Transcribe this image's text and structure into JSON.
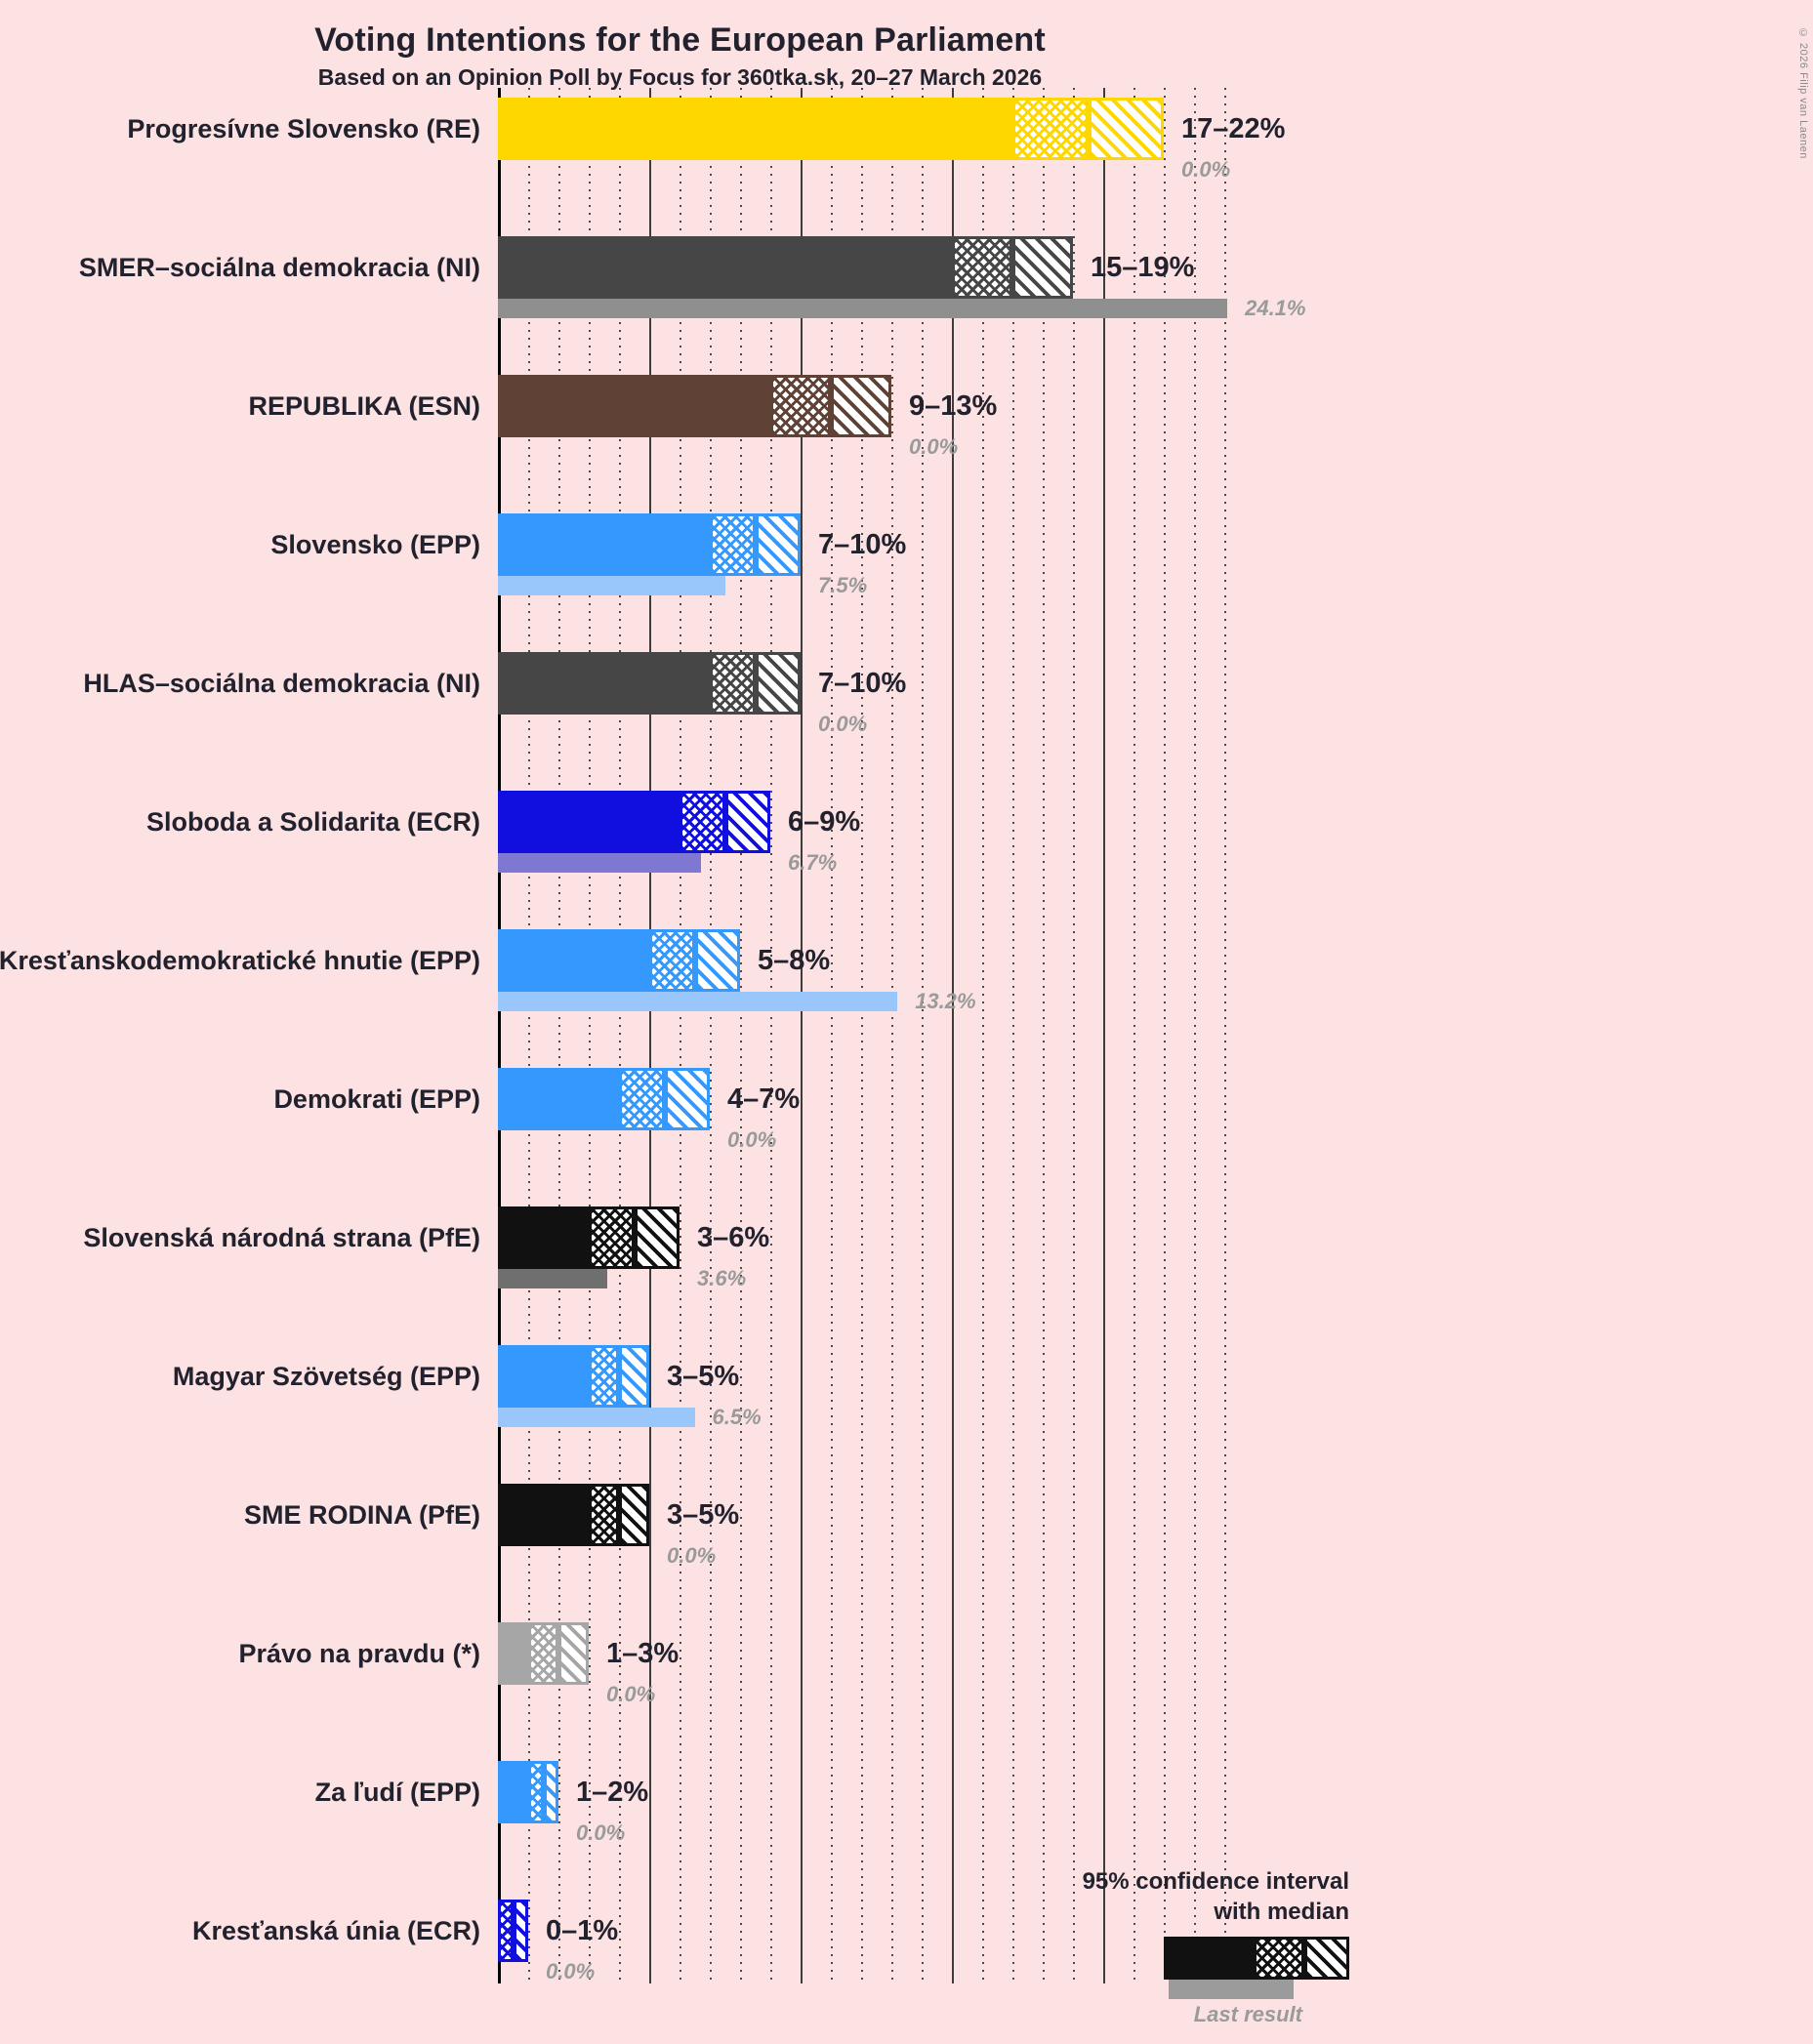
{
  "title": "Voting Intentions for the European Parliament",
  "subtitle": "Based on an Opinion Poll by Focus for 360tka.sk, 20–27 March 2026",
  "copyright": "© 2026 Filip van Laenen",
  "legend": {
    "ci_line1": "95% confidence interval",
    "ci_line2": "with median",
    "last_result": "Last result",
    "sample_color": "#111111",
    "sample_last_color": "#9b9b9b"
  },
  "chart_data": {
    "type": "bar",
    "orientation": "horizontal",
    "x_axis": {
      "min": 0,
      "max": 25,
      "unit": "%",
      "dotted_gridline_step": 1,
      "solid_gridline_step": 5,
      "tick_labels_visible": false
    },
    "legend_position": "bottom-right",
    "background_color": "#fce2e2",
    "parties": [
      {
        "label": "Progresívne Slovensko (RE)",
        "ci_low": 17,
        "median": 19.5,
        "ci_high": 22,
        "last_result": 0.0,
        "range_label": "17–22%",
        "last_result_label": "0.0%",
        "color": "#ffd700",
        "last_color": "#eedf8e"
      },
      {
        "label": "SMER–sociálna demokracia (NI)",
        "ci_low": 15,
        "median": 17,
        "ci_high": 19,
        "last_result": 24.1,
        "range_label": "15–19%",
        "last_result_label": "24.1%",
        "color": "#464646",
        "last_color": "#8f8f8f"
      },
      {
        "label": "REPUBLIKA (ESN)",
        "ci_low": 9,
        "median": 11,
        "ci_high": 13,
        "last_result": 0.0,
        "range_label": "9–13%",
        "last_result_label": "0.0%",
        "color": "#5f4135",
        "last_color": "#a38c82"
      },
      {
        "label": "Slovensko (EPP)",
        "ci_low": 7,
        "median": 8.5,
        "ci_high": 10,
        "last_result": 7.5,
        "range_label": "7–10%",
        "last_result_label": "7.5%",
        "color": "#3498fd",
        "last_color": "#99c6fb"
      },
      {
        "label": "HLAS–sociálna demokracia (NI)",
        "ci_low": 7,
        "median": 8.5,
        "ci_high": 10,
        "last_result": 0.0,
        "range_label": "7–10%",
        "last_result_label": "0.0%",
        "color": "#464646",
        "last_color": "#8f8f8f"
      },
      {
        "label": "Sloboda a Solidarita (ECR)",
        "ci_low": 6,
        "median": 7.5,
        "ci_high": 9,
        "last_result": 6.7,
        "range_label": "6–9%",
        "last_result_label": "6.7%",
        "color": "#100fdf",
        "last_color": "#7e78d2"
      },
      {
        "label": "Kresťanskodemokratické hnutie (EPP)",
        "ci_low": 5,
        "median": 6.5,
        "ci_high": 8,
        "last_result": 13.2,
        "range_label": "5–8%",
        "last_result_label": "13.2%",
        "color": "#3498fd",
        "last_color": "#99c6fb"
      },
      {
        "label": "Demokrati (EPP)",
        "ci_low": 4,
        "median": 5.5,
        "ci_high": 7,
        "last_result": 0.0,
        "range_label": "4–7%",
        "last_result_label": "0.0%",
        "color": "#3498fd",
        "last_color": "#99c6fb"
      },
      {
        "label": "Slovenská národná strana (PfE)",
        "ci_low": 3,
        "median": 4.5,
        "ci_high": 6,
        "last_result": 3.6,
        "range_label": "3–6%",
        "last_result_label": "3.6%",
        "color": "#111111",
        "last_color": "#6f6f6f"
      },
      {
        "label": "Magyar Szövetség (EPP)",
        "ci_low": 3,
        "median": 4,
        "ci_high": 5,
        "last_result": 6.5,
        "range_label": "3–5%",
        "last_result_label": "6.5%",
        "color": "#3498fd",
        "last_color": "#99c6fb"
      },
      {
        "label": "SME RODINA (PfE)",
        "ci_low": 3,
        "median": 4,
        "ci_high": 5,
        "last_result": 0.0,
        "range_label": "3–5%",
        "last_result_label": "0.0%",
        "color": "#111111",
        "last_color": "#6f6f6f"
      },
      {
        "label": "Právo na pravdu (*)",
        "ci_low": 1,
        "median": 2,
        "ci_high": 3,
        "last_result": 0.0,
        "range_label": "1–3%",
        "last_result_label": "0.0%",
        "color": "#a6a6a6",
        "last_color": "#cfcfcf"
      },
      {
        "label": "Za ľudí (EPP)",
        "ci_low": 1,
        "median": 1.5,
        "ci_high": 2,
        "last_result": 0.0,
        "range_label": "1–2%",
        "last_result_label": "0.0%",
        "color": "#3498fd",
        "last_color": "#99c6fb"
      },
      {
        "label": "Kresťanská únia (ECR)",
        "ci_low": 0,
        "median": 0.5,
        "ci_high": 1,
        "last_result": 0.0,
        "range_label": "0–1%",
        "last_result_label": "0.0%",
        "color": "#100fdf",
        "last_color": "#7e78d2"
      }
    ]
  }
}
